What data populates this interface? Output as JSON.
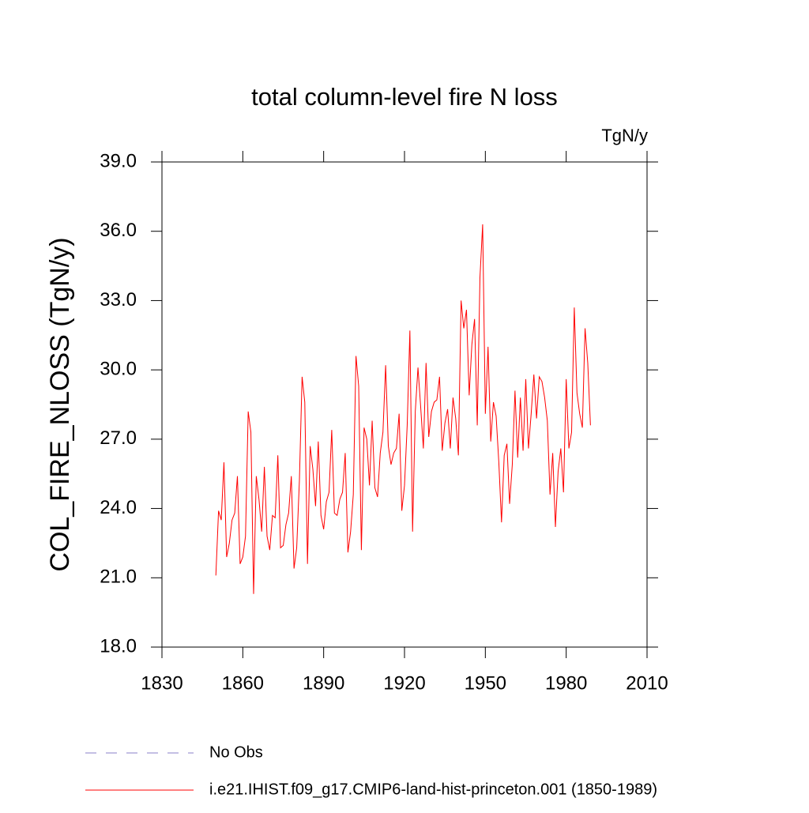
{
  "chart_data": {
    "type": "line",
    "title": "total column-level fire N loss",
    "subtitle": "TgN/y",
    "y_label": "COL_FIRE_NLOSS  (TgN/y)",
    "xlim": [
      1830,
      2010
    ],
    "xticks": [
      1830,
      1860,
      1890,
      1920,
      1950,
      1980,
      2010
    ],
    "ylim": [
      18,
      39
    ],
    "yticks": [
      {
        "value": 18,
        "label": "18.0"
      },
      {
        "value": 21,
        "label": "21.0"
      },
      {
        "value": 24,
        "label": "24.0"
      },
      {
        "value": 27,
        "label": "27.0"
      },
      {
        "value": 30,
        "label": "30.0"
      },
      {
        "value": 33,
        "label": "33.0"
      },
      {
        "value": 36,
        "label": "36.0"
      },
      {
        "value": 39,
        "label": "39.0"
      }
    ],
    "legend_entries": [
      {
        "name": "No Obs",
        "color": "#8a7fc8",
        "style": "dashed"
      }
    ],
    "x": [
      1850,
      1851,
      1852,
      1853,
      1854,
      1855,
      1856,
      1857,
      1858,
      1859,
      1860,
      1861,
      1862,
      1863,
      1864,
      1865,
      1866,
      1867,
      1868,
      1869,
      1870,
      1871,
      1872,
      1873,
      1874,
      1875,
      1876,
      1877,
      1878,
      1879,
      1880,
      1881,
      1882,
      1883,
      1884,
      1885,
      1886,
      1887,
      1888,
      1889,
      1890,
      1891,
      1892,
      1893,
      1894,
      1895,
      1896,
      1897,
      1898,
      1899,
      1900,
      1901,
      1902,
      1903,
      1904,
      1905,
      1906,
      1907,
      1908,
      1909,
      1910,
      1911,
      1912,
      1913,
      1914,
      1915,
      1916,
      1917,
      1918,
      1919,
      1920,
      1921,
      1922,
      1923,
      1924,
      1925,
      1926,
      1927,
      1928,
      1929,
      1930,
      1931,
      1932,
      1933,
      1934,
      1935,
      1936,
      1937,
      1938,
      1939,
      1940,
      1941,
      1942,
      1943,
      1944,
      1945,
      1946,
      1947,
      1948,
      1949,
      1950,
      1951,
      1952,
      1953,
      1954,
      1955,
      1956,
      1957,
      1958,
      1959,
      1960,
      1961,
      1962,
      1963,
      1964,
      1965,
      1966,
      1967,
      1968,
      1969,
      1970,
      1971,
      1972,
      1973,
      1974,
      1975,
      1976,
      1977,
      1978,
      1979,
      1980,
      1981,
      1982,
      1983,
      1984,
      1985,
      1986,
      1987,
      1988,
      1989
    ],
    "series": [
      {
        "name": "i.e21.IHIST.f09_g17.CMIP6-land-hist-princeton.001 (1850-1989)",
        "color": "#ff0000",
        "values": [
          21.1,
          23.9,
          23.5,
          26.0,
          21.9,
          22.5,
          23.5,
          23.8,
          25.4,
          21.6,
          21.9,
          22.8,
          28.2,
          27.3,
          20.3,
          25.4,
          24.4,
          23.0,
          25.8,
          22.8,
          22.2,
          23.7,
          23.6,
          26.3,
          22.3,
          22.4,
          23.3,
          23.8,
          25.4,
          21.4,
          22.3,
          25.2,
          29.7,
          28.6,
          21.6,
          26.7,
          25.7,
          24.1,
          26.9,
          23.7,
          23.1,
          24.3,
          24.7,
          27.4,
          23.8,
          23.7,
          24.4,
          24.7,
          26.4,
          22.1,
          23.0,
          24.6,
          30.6,
          29.3,
          22.2,
          27.5,
          27.0,
          25.0,
          27.8,
          24.9,
          24.5,
          26.4,
          27.3,
          30.2,
          26.7,
          25.9,
          26.4,
          26.6,
          28.1,
          23.9,
          25.0,
          27.6,
          31.7,
          23.0,
          28.2,
          30.1,
          28.4,
          26.6,
          30.3,
          27.1,
          28.2,
          28.6,
          28.7,
          29.7,
          26.5,
          27.7,
          28.3,
          26.6,
          28.8,
          27.9,
          26.3,
          33.0,
          31.8,
          32.6,
          28.9,
          31.1,
          32.2,
          27.6,
          34.0,
          36.3,
          28.1,
          31.0,
          26.9,
          28.6,
          28.0,
          26.0,
          23.4,
          26.3,
          26.8,
          24.2,
          25.9,
          29.1,
          26.2,
          28.8,
          26.5,
          29.6,
          26.6,
          28.1,
          29.8,
          27.9,
          29.7,
          29.5,
          28.8,
          27.8,
          24.6,
          26.4,
          23.2,
          25.6,
          26.6,
          24.7,
          29.6,
          26.6,
          27.3,
          32.7,
          29.0,
          28.1,
          27.5,
          31.8,
          30.3,
          27.6
        ]
      }
    ]
  }
}
